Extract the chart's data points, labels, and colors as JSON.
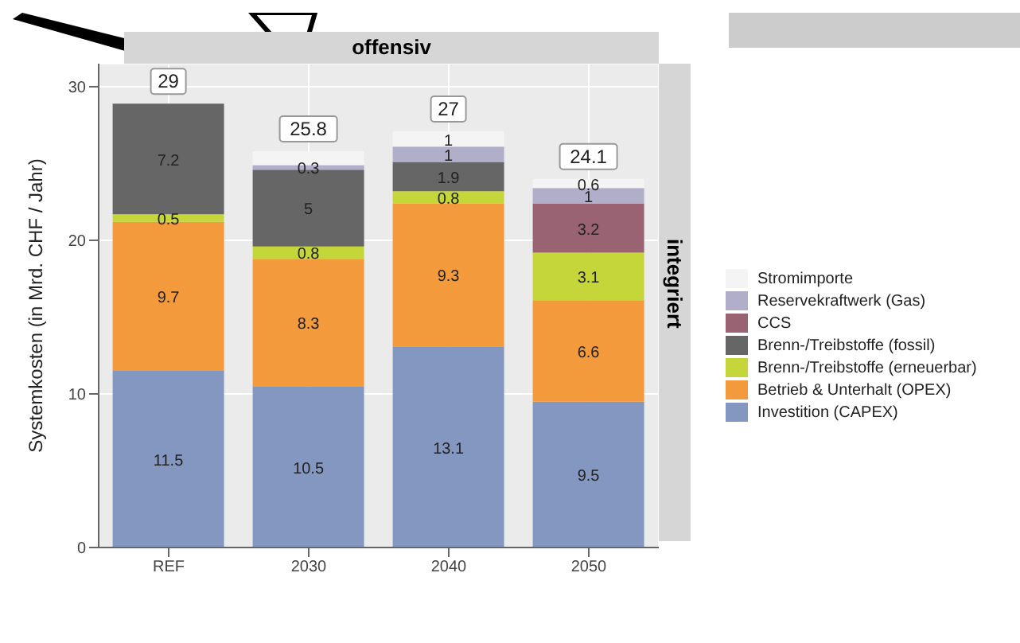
{
  "chart_data": {
    "type": "bar",
    "stacked": true,
    "ylabel": "Systemkosten (in Mrd. CHF / Jahr)",
    "categories": [
      "REF",
      "2030",
      "2040",
      "2050"
    ],
    "series": [
      {
        "name": "Investition (CAPEX)",
        "color": "#8497c0",
        "values": [
          11.5,
          10.5,
          13.1,
          9.5
        ],
        "value_labels": [
          "11.5",
          "10.5",
          "13.1",
          "9.5"
        ]
      },
      {
        "name": "Betrieb & Unterhalt (OPEX)",
        "color": "#f39a3c",
        "values": [
          9.7,
          8.3,
          9.3,
          6.6
        ],
        "value_labels": [
          "9.7",
          "8.3",
          "9.3",
          "6.6"
        ]
      },
      {
        "name": "Brenn-/Treibstoffe (erneuerbar)",
        "color": "#c5d63a",
        "values": [
          0.5,
          0.8,
          0.8,
          3.1
        ],
        "value_labels": [
          "0.5",
          "0.8",
          "0.8",
          "3.1"
        ]
      },
      {
        "name": "Brenn-/Treibstoffe (fossil)",
        "color": "#666666",
        "values": [
          7.2,
          5,
          1.9,
          null
        ],
        "value_labels": [
          "7.2",
          "5",
          "1.9",
          null
        ]
      },
      {
        "name": "CCS",
        "color": "#9a6373",
        "values": [
          null,
          null,
          null,
          3.2
        ],
        "value_labels": [
          null,
          null,
          null,
          "3.2"
        ]
      },
      {
        "name": "Reservekraftwerk (Gas)",
        "color": "#b0aec8",
        "values": [
          null,
          0.3,
          1,
          1
        ],
        "value_labels": [
          null,
          "0.3",
          "1",
          "1"
        ]
      },
      {
        "name": "Stromimporte",
        "color": "#f4f4f4",
        "values": [
          null,
          0.9,
          1,
          0.6
        ],
        "value_labels": [
          null,
          null,
          "1",
          "0.6"
        ]
      }
    ],
    "totals": [
      "29",
      "25.8",
      "27",
      "24.1"
    ],
    "ylim": [
      0,
      31.5
    ],
    "yticks": [
      0,
      10,
      20,
      30
    ],
    "grid": true,
    "legend": "right",
    "annotations": [
      "offensiv",
      "integriert"
    ]
  }
}
